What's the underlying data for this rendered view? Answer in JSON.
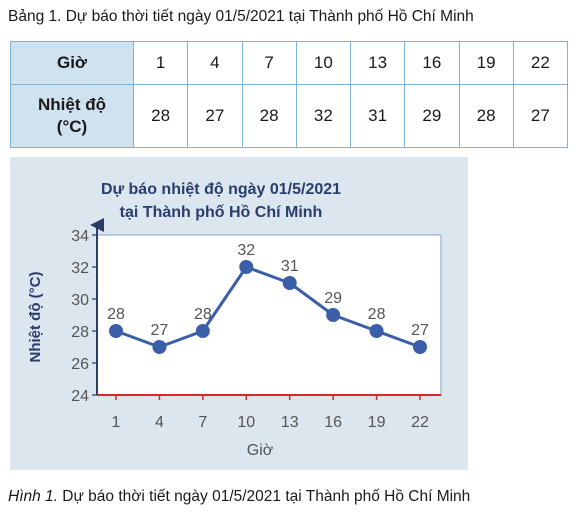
{
  "table_caption": "Bảng 1. Dự báo thời tiết ngày 01/5/2021 tại Thành phố Hồ Chí Minh",
  "table": {
    "hour_header": "Giờ",
    "temp_header_line1": "Nhiệt độ",
    "temp_header_line2": "(°C)",
    "hours": [
      "1",
      "4",
      "7",
      "10",
      "13",
      "16",
      "19",
      "22"
    ],
    "temps": [
      "28",
      "27",
      "28",
      "32",
      "31",
      "29",
      "28",
      "27"
    ]
  },
  "chart_data": {
    "type": "line",
    "title_line1": "Dự báo nhiệt độ ngày 01/5/2021",
    "title_line2": "tại Thành phố Hồ Chí Minh",
    "xlabel": "Giờ",
    "ylabel": "Nhiệt độ (°C)",
    "categories": [
      1,
      4,
      7,
      10,
      13,
      16,
      19,
      22
    ],
    "values": [
      28,
      27,
      28,
      32,
      31,
      29,
      28,
      27
    ],
    "ylim": [
      24,
      34
    ],
    "yticks": [
      24,
      26,
      28,
      30,
      32,
      34
    ],
    "grid": false,
    "colors": {
      "line": "#3a5ea8",
      "marker": "#3a5ea8",
      "baseline": "#d42a2a",
      "axis": "#2a3d6b",
      "background": "#dbe6ef",
      "plot_background": "#ffffff"
    }
  },
  "figure_caption_label": "Hình 1.",
  "figure_caption_text": " Dự báo thời tiết ngày 01/5/2021 tại Thành phố Hồ Chí Minh"
}
